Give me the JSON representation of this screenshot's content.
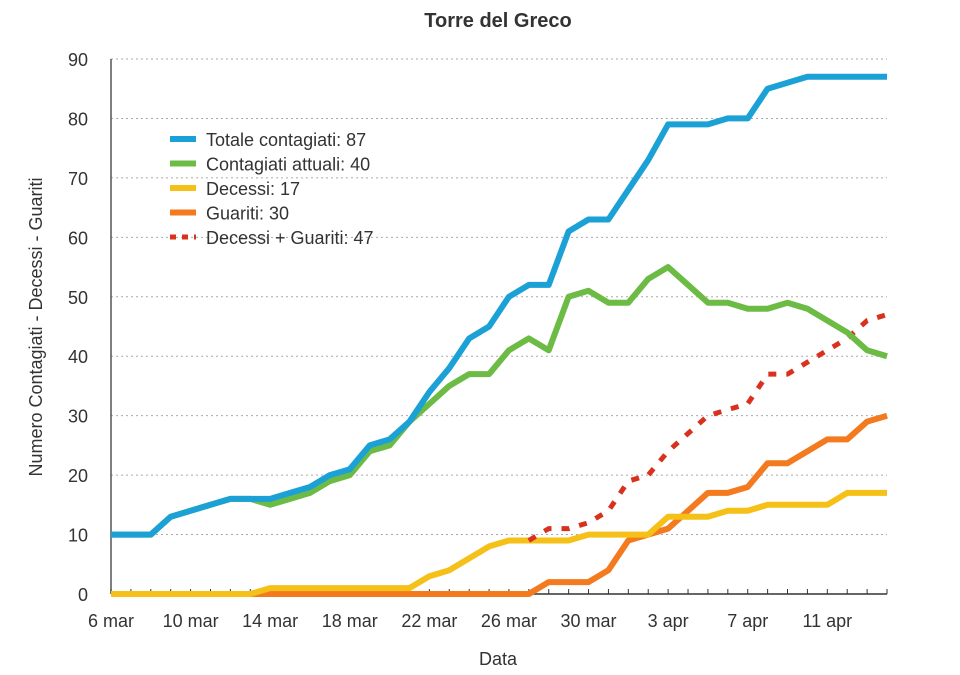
{
  "chart_data": {
    "type": "line",
    "title": "Torre del Greco",
    "xlabel": "Data",
    "ylabel": "Numero Contagiati - Decessi - Guariti",
    "ylim": [
      0,
      90
    ],
    "yticks": [
      0,
      10,
      20,
      30,
      40,
      50,
      60,
      70,
      80,
      90
    ],
    "grid": true,
    "legend_position": "top-left",
    "x": [
      "6 mar",
      "7 mar",
      "8 mar",
      "9 mar",
      "10 mar",
      "11 mar",
      "12 mar",
      "13 mar",
      "14 mar",
      "15 mar",
      "16 mar",
      "17 mar",
      "18 mar",
      "19 mar",
      "20 mar",
      "21 mar",
      "22 mar",
      "23 mar",
      "24 mar",
      "25 mar",
      "26 mar",
      "27 mar",
      "28 mar",
      "29 mar",
      "30 mar",
      "31 mar",
      "1 apr",
      "2 apr",
      "3 apr",
      "4 apr",
      "5 apr",
      "6 apr",
      "7 apr",
      "8 apr",
      "9 apr",
      "10 apr",
      "11 apr",
      "12 apr",
      "13 apr",
      "14 apr"
    ],
    "xtick_labels": [
      "6 mar",
      "10 mar",
      "14 mar",
      "18 mar",
      "22 mar",
      "26 mar",
      "30 mar",
      "3 apr",
      "7 apr",
      "11 apr"
    ],
    "series": [
      {
        "name": "Totale contagiati: 87",
        "color": "#1BA1D6",
        "dashed": false,
        "values": [
          10,
          10,
          10,
          13,
          14,
          15,
          16,
          16,
          16,
          17,
          18,
          20,
          21,
          25,
          26,
          29,
          34,
          38,
          43,
          45,
          50,
          52,
          52,
          61,
          63,
          63,
          68,
          73,
          79,
          79,
          79,
          80,
          80,
          85,
          86,
          87,
          87,
          87,
          87,
          87
        ]
      },
      {
        "name": "Contagiati attuali: 40",
        "color": "#6CBB45",
        "dashed": false,
        "values": [
          10,
          10,
          10,
          13,
          14,
          15,
          16,
          16,
          15,
          16,
          17,
          19,
          20,
          24,
          25,
          29,
          32,
          35,
          37,
          37,
          41,
          43,
          41,
          50,
          51,
          49,
          49,
          53,
          55,
          52,
          49,
          49,
          48,
          48,
          49,
          48,
          46,
          44,
          41,
          40
        ]
      },
      {
        "name": "Decessi: 17",
        "color": "#F5C018",
        "dashed": false,
        "values": [
          0,
          0,
          0,
          0,
          0,
          0,
          0,
          0,
          1,
          1,
          1,
          1,
          1,
          1,
          1,
          1,
          3,
          4,
          6,
          8,
          9,
          9,
          9,
          9,
          10,
          10,
          10,
          10,
          13,
          13,
          13,
          14,
          14,
          15,
          15,
          15,
          15,
          17,
          17,
          17
        ]
      },
      {
        "name": "Guariti: 30",
        "color": "#F47A1F",
        "dashed": false,
        "values": [
          0,
          0,
          0,
          0,
          0,
          0,
          0,
          0,
          0,
          0,
          0,
          0,
          0,
          0,
          0,
          0,
          0,
          0,
          0,
          0,
          0,
          0,
          2,
          2,
          2,
          4,
          9,
          10,
          11,
          14,
          17,
          17,
          18,
          22,
          22,
          24,
          26,
          26,
          29,
          30
        ]
      },
      {
        "name": "Decessi + Guariti: 47",
        "color": "#D8321E",
        "dashed": true,
        "values": [
          null,
          null,
          null,
          null,
          null,
          null,
          null,
          null,
          null,
          null,
          null,
          null,
          null,
          null,
          null,
          null,
          null,
          null,
          null,
          null,
          null,
          9,
          11,
          11,
          12,
          14,
          19,
          20,
          24,
          27,
          30,
          31,
          32,
          37,
          37,
          39,
          41,
          43,
          46,
          47
        ]
      }
    ]
  }
}
